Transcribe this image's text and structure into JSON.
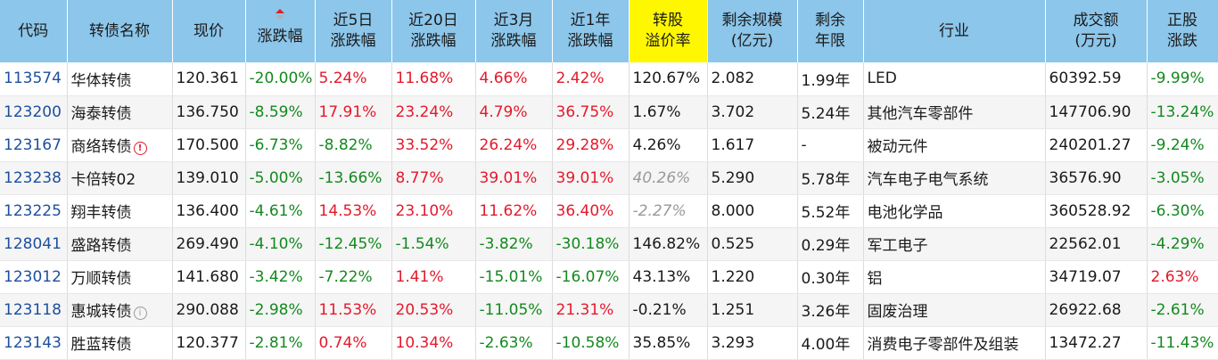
{
  "headers": [
    {
      "label": "代码"
    },
    {
      "label": "转债名称"
    },
    {
      "label": "现价"
    },
    {
      "label": "涨跌幅",
      "sorted": "desc"
    },
    {
      "label": "近5日\n涨跌幅"
    },
    {
      "label": "近20日\n涨跌幅"
    },
    {
      "label": "近3月\n涨跌幅"
    },
    {
      "label": "近1年\n涨跌幅"
    },
    {
      "label": "转股\n溢价率",
      "highlight": true
    },
    {
      "label": "剩余规模\n(亿元)"
    },
    {
      "label": "剩余\n年限"
    },
    {
      "label": "行业"
    },
    {
      "label": "成交额\n(万元)"
    },
    {
      "label": "正股\n涨跌"
    }
  ],
  "colors": {
    "up": "#e4192b",
    "down": "#13891e",
    "link": "#1d4f9e",
    "header_bg": "#8cc6ea",
    "highlight": "#fff700"
  },
  "rows": [
    {
      "code": "113574",
      "name": "华体转债",
      "name_icon": null,
      "price": "120.361",
      "chg": "-20.00%",
      "chg5": "5.24%",
      "chg20": "11.68%",
      "chg3m": "4.66%",
      "chg1y": "2.42%",
      "premium": "120.67%",
      "premium_muted": false,
      "scale": "2.082",
      "years": "1.99年",
      "industry": "LED",
      "turnover": "60392.59",
      "stock_chg": "-9.99%"
    },
    {
      "code": "123200",
      "name": "海泰转债",
      "name_icon": null,
      "price": "136.750",
      "chg": "-8.59%",
      "chg5": "17.91%",
      "chg20": "23.24%",
      "chg3m": "4.79%",
      "chg1y": "36.75%",
      "premium": "1.67%",
      "premium_muted": false,
      "scale": "3.702",
      "years": "5.24年",
      "industry": "其他汽车零部件",
      "turnover": "147706.90",
      "stock_chg": "-13.24%"
    },
    {
      "code": "123167",
      "name": "商络转债",
      "name_icon": "warning-icon",
      "price": "170.500",
      "chg": "-6.73%",
      "chg5": "-8.82%",
      "chg20": "33.52%",
      "chg3m": "26.24%",
      "chg1y": "29.28%",
      "premium": "4.26%",
      "premium_muted": false,
      "scale": "1.617",
      "years": "-",
      "industry": "被动元件",
      "turnover": "240201.27",
      "stock_chg": "-9.24%"
    },
    {
      "code": "123238",
      "name": "卡倍转02",
      "name_icon": null,
      "price": "139.010",
      "chg": "-5.00%",
      "chg5": "-13.66%",
      "chg20": "8.77%",
      "chg3m": "39.01%",
      "chg1y": "39.01%",
      "premium": "40.26%",
      "premium_muted": true,
      "scale": "5.290",
      "years": "5.78年",
      "industry": "汽车电子电气系统",
      "turnover": "36576.90",
      "stock_chg": "-3.05%"
    },
    {
      "code": "123225",
      "name": "翔丰转债",
      "name_icon": null,
      "price": "136.400",
      "chg": "-4.61%",
      "chg5": "14.53%",
      "chg20": "23.10%",
      "chg3m": "11.62%",
      "chg1y": "36.40%",
      "premium": "-2.27%",
      "premium_muted": true,
      "scale": "8.000",
      "years": "5.52年",
      "industry": "电池化学品",
      "turnover": "360528.92",
      "stock_chg": "-6.30%"
    },
    {
      "code": "128041",
      "name": "盛路转债",
      "name_icon": null,
      "price": "269.490",
      "chg": "-4.10%",
      "chg5": "-12.45%",
      "chg20": "-1.54%",
      "chg3m": "-3.82%",
      "chg1y": "-30.18%",
      "premium": "146.82%",
      "premium_muted": false,
      "scale": "0.525",
      "years": "0.29年",
      "industry": "军工电子",
      "turnover": "22562.01",
      "stock_chg": "-4.29%"
    },
    {
      "code": "123012",
      "name": "万顺转债",
      "name_icon": null,
      "price": "141.680",
      "chg": "-3.42%",
      "chg5": "-7.22%",
      "chg20": "1.41%",
      "chg3m": "-15.01%",
      "chg1y": "-16.07%",
      "premium": "43.13%",
      "premium_muted": false,
      "scale": "1.220",
      "years": "0.30年",
      "industry": "铝",
      "turnover": "34719.07",
      "stock_chg": "2.63%"
    },
    {
      "code": "123118",
      "name": "惠城转债",
      "name_icon": "info-icon",
      "price": "290.088",
      "chg": "-2.98%",
      "chg5": "11.53%",
      "chg20": "20.53%",
      "chg3m": "-11.05%",
      "chg1y": "21.31%",
      "premium": "-0.21%",
      "premium_muted": false,
      "scale": "1.251",
      "years": "3.26年",
      "industry": "固废治理",
      "turnover": "26922.68",
      "stock_chg": "-2.61%"
    },
    {
      "code": "123143",
      "name": "胜蓝转债",
      "name_icon": null,
      "price": "120.377",
      "chg": "-2.81%",
      "chg5": "0.74%",
      "chg20": "10.34%",
      "chg3m": "-2.63%",
      "chg1y": "-10.58%",
      "premium": "35.85%",
      "premium_muted": false,
      "scale": "3.293",
      "years": "4.00年",
      "industry": "消费电子零部件及组装",
      "turnover": "13472.27",
      "stock_chg": "-11.43%"
    }
  ]
}
